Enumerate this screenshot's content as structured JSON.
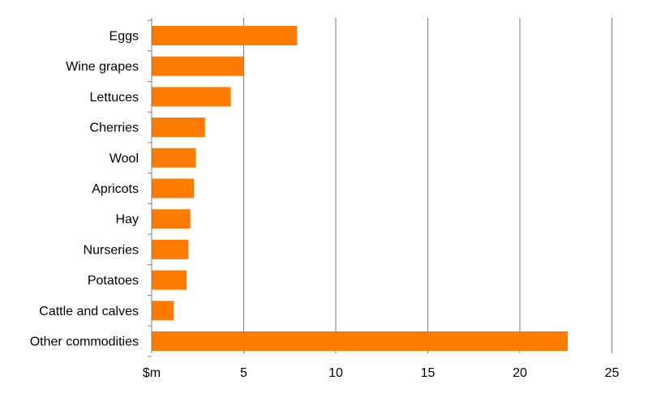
{
  "chart_data": {
    "type": "bar",
    "orientation": "horizontal",
    "categories": [
      "Eggs",
      "Wine grapes",
      "Lettuces",
      "Cherries",
      "Wool",
      "Apricots",
      "Hay",
      "Nurseries",
      "Potatoes",
      "Cattle and calves",
      "Other commodities"
    ],
    "values": [
      7.9,
      5.0,
      4.3,
      2.9,
      2.4,
      2.3,
      2.1,
      2.0,
      1.9,
      1.2,
      22.6
    ],
    "x_unit_label": "$m",
    "x_ticks": [
      "5",
      "10",
      "15",
      "20",
      "25"
    ],
    "x_tick_values": [
      5,
      10,
      15,
      20,
      25
    ],
    "xlim": [
      0,
      25
    ],
    "grid": "vertical",
    "bar_color": "#ff7c00",
    "grid_color": "#7f7f7f",
    "axis_color": "#7f7f7f"
  }
}
